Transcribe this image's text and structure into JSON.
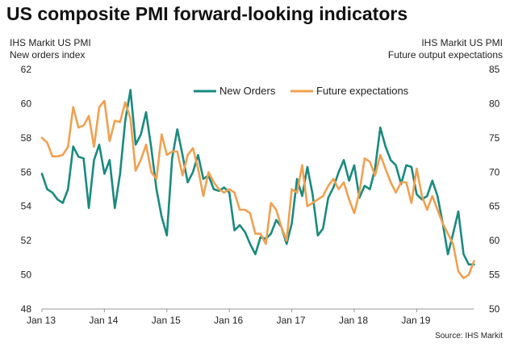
{
  "title": "US composite PMI forward-looking indicators",
  "left_axis_title": [
    "IHS Markit  US PMI",
    "New orders index"
  ],
  "right_axis_title": [
    "IHS Markit  US PMI",
    "Future output expectations"
  ],
  "source": "Source: IHS Markit",
  "colors": {
    "new_orders": "#1a8a7e",
    "future_expectations": "#f0a050",
    "axis": "#999999"
  },
  "chart_data": {
    "type": "line",
    "title": "US composite PMI forward-looking indicators",
    "x_tick_labels": [
      "Jan 13",
      "Jan 14",
      "Jan 15",
      "Jan 16",
      "Jan 17",
      "Jan 18",
      "Jan 19"
    ],
    "x_start": "2013-01",
    "x_end": "2019-08",
    "y_left": {
      "label": "New orders index",
      "lim": [
        48,
        62
      ],
      "ticks": [
        48,
        50,
        52,
        54,
        56,
        58,
        60,
        62
      ]
    },
    "y_right": {
      "label": "Future output expectations",
      "lim": [
        50,
        85
      ],
      "ticks": [
        50,
        55,
        60,
        65,
        70,
        75,
        80,
        85
      ]
    },
    "legend_position": "top-center",
    "grid": false,
    "series": [
      {
        "name": "New Orders",
        "axis": "left",
        "values": [
          55.9,
          55.0,
          54.8,
          54.4,
          54.2,
          55.0,
          57.5,
          56.9,
          56.8,
          53.9,
          56.7,
          57.6,
          55.9,
          56.7,
          53.9,
          55.9,
          59.0,
          60.8,
          57.6,
          58.2,
          59.5,
          57.4,
          55.0,
          53.4,
          52.3,
          56.8,
          58.5,
          57.0,
          55.4,
          56.0,
          57.0,
          55.6,
          55.8,
          55.0,
          54.9,
          55.1,
          54.8,
          52.6,
          52.9,
          52.5,
          51.8,
          51.2,
          52.2,
          52.1,
          52.4,
          53.2,
          52.8,
          51.8,
          53.0,
          55.6,
          54.6,
          56.3,
          54.7,
          52.3,
          52.7,
          54.5,
          55.1,
          56.0,
          56.7,
          55.5,
          56.4,
          54.5,
          55.2,
          55.0,
          56.2,
          58.6,
          57.5,
          56.7,
          56.4,
          55.3,
          56.4,
          56.3,
          54.7,
          54.4,
          54.6,
          55.5,
          54.6,
          53.0,
          51.2,
          52.4,
          53.7,
          51.2,
          50.6,
          50.6
        ]
      },
      {
        "name": "Future expectations",
        "axis": "right",
        "values": [
          75.0,
          74.3,
          72.3,
          72.3,
          72.5,
          73.7,
          79.5,
          76.5,
          76.8,
          78.2,
          73.7,
          79.5,
          80.4,
          74.5,
          77.5,
          77.3,
          80.2,
          77.8,
          70.2,
          71.8,
          74.0,
          70.0,
          69.0,
          75.5,
          72.5,
          73.0,
          73.0,
          69.5,
          72.5,
          73.5,
          70.5,
          66.5,
          70.0,
          68.5,
          67.5,
          67.0,
          67.5,
          67.0,
          64.5,
          64.5,
          64.0,
          61.0,
          61.0,
          59.5,
          65.5,
          64.5,
          62.0,
          60.0,
          67.5,
          67.0,
          71.0,
          65.0,
          65.5,
          66.0,
          66.5,
          68.0,
          69.0,
          67.5,
          68.5,
          66.0,
          64.0,
          67.0,
          72.0,
          71.5,
          69.5,
          72.5,
          70.5,
          68.5,
          67.0,
          68.5,
          68.5,
          65.5,
          70.5,
          66.5,
          64.5,
          66.5,
          64.5,
          62.5,
          61.0,
          59.5,
          55.5,
          54.5,
          55.0,
          57.0
        ]
      }
    ]
  }
}
